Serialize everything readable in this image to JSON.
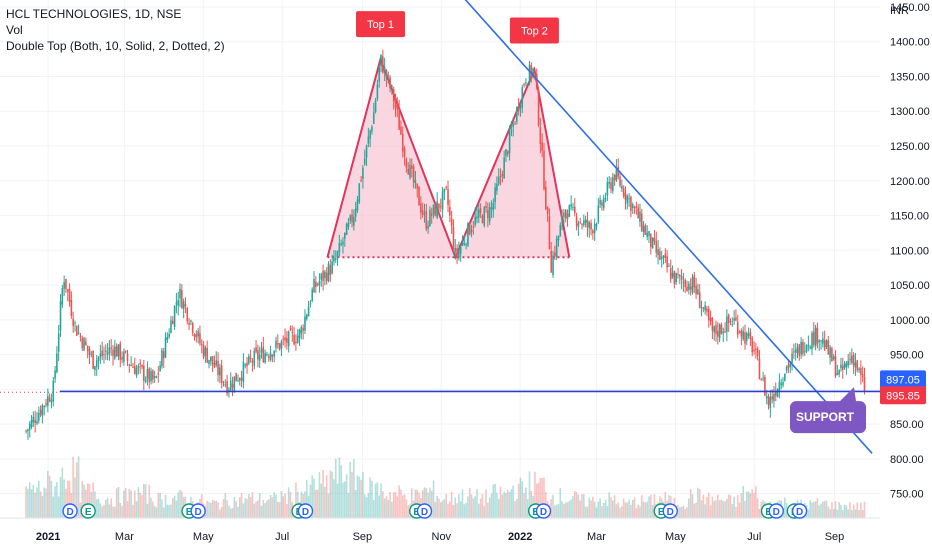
{
  "header": {
    "title": "HCL TECHNOLOGIES, 1D, NSE",
    "indicator_vol": "Vol",
    "indicator_pattern": "Double Top (Both, 10, Solid, 2, Dotted, 2)"
  },
  "colors": {
    "up": "#26a69a",
    "down": "#ef5350",
    "pattern_line": "#e0345b",
    "pattern_fill": "#f8c8d6",
    "trendline": "#2f6fe0",
    "support_line": "#2a3fcf",
    "label_red": "#f23645",
    "label_blue": "#2962ff",
    "support_badge": "#7e57c2"
  },
  "annotations": {
    "top1": "Top 1",
    "top2": "Top 2",
    "support": "SUPPORT",
    "price_high": "897.05",
    "price_last": "895.85"
  },
  "event_markers": [
    {
      "letter": "D",
      "type": "dividend"
    },
    {
      "letter": "E",
      "type": "earnings"
    },
    {
      "letter": "E",
      "type": "earnings"
    },
    {
      "letter": "D",
      "type": "dividend"
    },
    {
      "letter": "E",
      "type": "earnings"
    },
    {
      "letter": "D",
      "type": "dividend"
    },
    {
      "letter": "E",
      "type": "earnings"
    },
    {
      "letter": "D",
      "type": "dividend"
    },
    {
      "letter": "E",
      "type": "earnings"
    },
    {
      "letter": "D",
      "type": "dividend"
    },
    {
      "letter": "E",
      "type": "earnings"
    },
    {
      "letter": "D",
      "type": "dividend"
    },
    {
      "letter": "E",
      "type": "earnings"
    },
    {
      "letter": "D",
      "type": "dividend"
    },
    {
      "letter": "E",
      "type": "earnings"
    },
    {
      "letter": "D",
      "type": "dividend"
    }
  ],
  "chart_data": {
    "type": "line",
    "title": "HCL TECHNOLOGIES, 1D, NSE",
    "currency": "INR",
    "ylim": [
      715,
      1460
    ],
    "y_ticks": [
      750,
      800,
      850,
      900,
      950,
      1000,
      1050,
      1100,
      1150,
      1200,
      1250,
      1300,
      1350,
      1400,
      1450
    ],
    "y_tick_labels": [
      "750.00",
      "800.00",
      "850.00",
      "900.00",
      "950.00",
      "1000.00",
      "1050.00",
      "1100.00",
      "1150.00",
      "1200.00",
      "1250.00",
      "1300.00",
      "1350.00",
      "1400.00",
      "1450.00"
    ],
    "x_ticks": [
      "2021",
      "Mar",
      "May",
      "Jul",
      "Sep",
      "Nov",
      "2022",
      "Mar",
      "May",
      "Jul",
      "Sep"
    ],
    "x_tick_dates": [
      "2021-01-01",
      "2021-03-01",
      "2021-05-01",
      "2021-07-01",
      "2021-09-01",
      "2021-11-01",
      "2022-01-01",
      "2022-03-01",
      "2022-05-01",
      "2022-07-01",
      "2022-09-01"
    ],
    "grid": true,
    "series": [
      {
        "x": [
          "2020-12-15",
          "2021-01-05",
          "2021-01-13",
          "2021-01-22",
          "2021-02-05",
          "2021-02-20",
          "2021-03-10",
          "2021-03-25",
          "2021-04-12",
          "2021-04-30",
          "2021-05-20",
          "2021-06-10",
          "2021-06-30",
          "2021-07-15",
          "2021-07-25",
          "2021-08-10",
          "2021-08-25",
          "2021-09-10",
          "2021-09-15",
          "2021-09-25",
          "2021-10-05",
          "2021-10-20",
          "2021-11-05",
          "2021-11-12",
          "2021-11-25",
          "2021-12-10",
          "2021-12-20",
          "2022-01-05",
          "2022-01-12",
          "2022-01-25",
          "2022-02-05",
          "2022-02-25",
          "2022-03-15",
          "2022-03-30",
          "2022-04-15",
          "2022-04-30",
          "2022-05-15",
          "2022-05-30",
          "2022-06-15",
          "2022-06-30",
          "2022-07-12",
          "2022-07-25",
          "2022-08-10",
          "2022-08-20",
          "2022-09-05",
          "2022-09-15",
          "2022-09-25"
        ],
        "values": [
          840,
          900,
          1065,
          990,
          940,
          960,
          930,
          910,
          1040,
          960,
          905,
          945,
          965,
          980,
          1045,
          1080,
          1150,
          1300,
          1375,
          1320,
          1230,
          1140,
          1180,
          1090,
          1140,
          1160,
          1230,
          1350,
          1360,
          1080,
          1160,
          1130,
          1210,
          1160,
          1100,
          1060,
          1050,
          980,
          1000,
          960,
          880,
          930,
          970,
          980,
          920,
          950,
          895.85
        ]
      }
    ],
    "volume_series": [
      60,
      70,
      90,
      55,
      40,
      45,
      50,
      38,
      42,
      35,
      30,
      36,
      40,
      38,
      45,
      55,
      70,
      90,
      85,
      60,
      50,
      45,
      55,
      40,
      45,
      42,
      50,
      60,
      70,
      45,
      40,
      35,
      38,
      30,
      34,
      40,
      32,
      45,
      38,
      35,
      50,
      30,
      32,
      28,
      30,
      26,
      24
    ],
    "double_top": {
      "top1": {
        "date": "2021-09-15",
        "price": 1375
      },
      "trough": {
        "date": "2021-11-12",
        "price": 1090
      },
      "top2": {
        "date": "2022-01-12",
        "price": 1360
      },
      "neckline": 1090
    },
    "support_level": 897.05,
    "last_price": 895.85
  }
}
